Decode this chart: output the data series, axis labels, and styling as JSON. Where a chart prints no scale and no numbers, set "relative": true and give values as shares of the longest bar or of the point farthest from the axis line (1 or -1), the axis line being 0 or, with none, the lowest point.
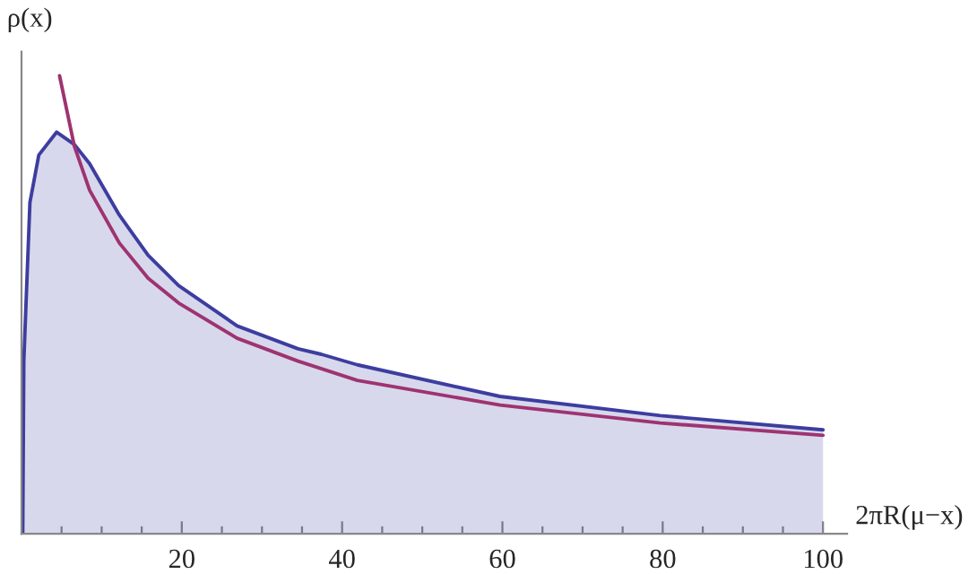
{
  "chart_data": {
    "type": "line",
    "relative": true,
    "xlabel": "2πR(μ−x)",
    "ylabel": "ρ(x)",
    "xlim": [
      0,
      103
    ],
    "xticks": [
      {
        "value": 5,
        "label": null
      },
      {
        "value": 10,
        "label": null
      },
      {
        "value": 15,
        "label": null
      },
      20,
      {
        "value": 25,
        "label": null
      },
      {
        "value": 30,
        "label": null
      },
      {
        "value": 35,
        "label": null
      },
      40,
      {
        "value": 45,
        "label": null
      },
      {
        "value": 50,
        "label": null
      },
      {
        "value": 55,
        "label": null
      },
      60,
      {
        "value": 65,
        "label": null
      },
      {
        "value": 70,
        "label": null
      },
      {
        "value": 75,
        "label": null
      },
      80,
      {
        "value": 85,
        "label": null
      },
      {
        "value": 90,
        "label": null
      },
      {
        "value": 95,
        "label": null
      },
      100
    ],
    "series": [
      {
        "type": "area",
        "color": "#3d3da0",
        "x": [
          0,
          0.16,
          0.29,
          1.05,
          2.16,
          4.39,
          6.6,
          8.5,
          12.2,
          15.8,
          19.6,
          26.9,
          34.5,
          37.4,
          41.9,
          59.7,
          79.7,
          100
        ],
        "values": [
          0,
          0.004,
          0.377,
          0.723,
          0.827,
          0.877,
          0.85,
          0.808,
          0.696,
          0.608,
          0.542,
          0.454,
          0.404,
          0.392,
          0.369,
          0.3,
          0.258,
          0.227
        ]
      },
      {
        "type": "line",
        "color": "#9e3372",
        "x": [
          4.75,
          6.6,
          8.5,
          12.2,
          15.8,
          19.6,
          26.9,
          34.5,
          41.9,
          59.7,
          79.7,
          100
        ],
        "values": [
          1.0,
          0.846,
          0.75,
          0.635,
          0.558,
          0.504,
          0.427,
          0.377,
          0.335,
          0.281,
          0.242,
          0.215
        ]
      }
    ]
  }
}
